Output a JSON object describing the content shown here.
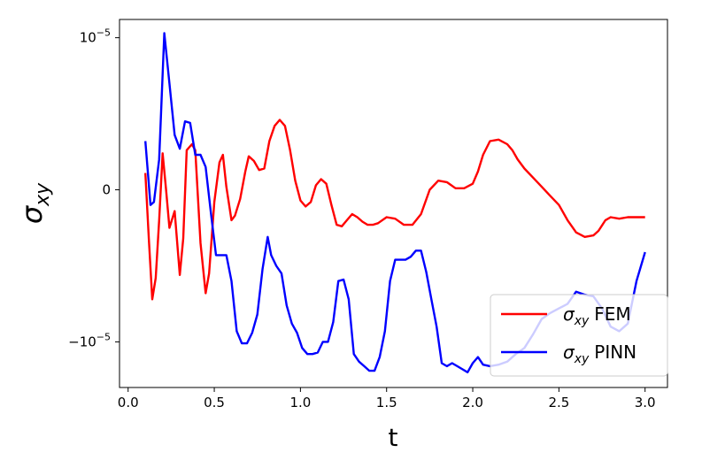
{
  "chart_data": {
    "type": "line",
    "xlabel": "t",
    "ylabel_base": "σ",
    "ylabel_sub": "xy",
    "xlim": [
      -0.05,
      3.13
    ],
    "ylim": [
      -1.3e-05,
      1.12e-05
    ],
    "x_ticks": [
      {
        "value": 0.0,
        "label": "0.0"
      },
      {
        "value": 0.5,
        "label": "0.5"
      },
      {
        "value": 1.0,
        "label": "1.0"
      },
      {
        "value": 1.5,
        "label": "1.5"
      },
      {
        "value": 2.0,
        "label": "2.0"
      },
      {
        "value": 2.5,
        "label": "2.5"
      },
      {
        "value": 3.0,
        "label": "3.0"
      }
    ],
    "y_ticks": [
      {
        "value": 1e-05,
        "base": "10",
        "exp": "−5",
        "sign": ""
      },
      {
        "value": 0,
        "base": "0",
        "exp": "",
        "sign": ""
      },
      {
        "value": -1e-05,
        "base": "10",
        "exp": "−5",
        "sign": "−"
      }
    ],
    "legend_position": "lower-right",
    "series": [
      {
        "name_base": "σ",
        "name_sub": "xy",
        "name_suffix": "FEM",
        "color": "#ff0000",
        "x": [
          0.1,
          0.12,
          0.14,
          0.16,
          0.18,
          0.2,
          0.22,
          0.24,
          0.27,
          0.3,
          0.32,
          0.34,
          0.37,
          0.39,
          0.42,
          0.45,
          0.47,
          0.5,
          0.53,
          0.55,
          0.57,
          0.6,
          0.62,
          0.65,
          0.68,
          0.7,
          0.73,
          0.76,
          0.79,
          0.82,
          0.85,
          0.88,
          0.91,
          0.94,
          0.97,
          1.0,
          1.03,
          1.06,
          1.09,
          1.12,
          1.15,
          1.18,
          1.21,
          1.24,
          1.27,
          1.3,
          1.33,
          1.36,
          1.39,
          1.42,
          1.45,
          1.5,
          1.55,
          1.6,
          1.65,
          1.7,
          1.75,
          1.8,
          1.85,
          1.9,
          1.95,
          2.0,
          2.03,
          2.06,
          2.1,
          2.15,
          2.2,
          2.23,
          2.26,
          2.3,
          2.35,
          2.4,
          2.45,
          2.5,
          2.55,
          2.6,
          2.65,
          2.7,
          2.73,
          2.77,
          2.8,
          2.85,
          2.9,
          2.95,
          3.0
        ],
        "y": [
          1.1e-06,
          -3.2e-06,
          -7.2e-06,
          -5.8e-06,
          -2e-06,
          2.4e-06,
          0.0,
          -2.5e-06,
          -1.4e-06,
          -5.6e-06,
          -3.2e-06,
          2.6e-06,
          3e-06,
          2.6e-06,
          -3.5e-06,
          -6.8e-06,
          -5.5e-06,
          -8e-07,
          1.8e-06,
          2.3e-06,
          2e-07,
          -2e-06,
          -1.7e-06,
          -6e-07,
          1.2e-06,
          2.2e-06,
          1.9e-06,
          1.3e-06,
          1.4e-06,
          3.2e-06,
          4.2e-06,
          4.6e-06,
          4.2e-06,
          2.6e-06,
          6e-07,
          -7e-07,
          -1.1e-06,
          -8e-07,
          3e-07,
          7e-07,
          4e-07,
          -1e-06,
          -2.3e-06,
          -2.4e-06,
          -2e-06,
          -1.6e-06,
          -1.8e-06,
          -2.1e-06,
          -2.3e-06,
          -2.3e-06,
          -2.2e-06,
          -1.8e-06,
          -1.9e-06,
          -2.3e-06,
          -2.3e-06,
          -1.6e-06,
          0.0,
          6e-07,
          5e-07,
          1e-07,
          1e-07,
          4e-07,
          1.2e-06,
          2.3e-06,
          3.2e-06,
          3.3e-06,
          3e-06,
          2.6e-06,
          2e-06,
          1.4e-06,
          8e-07,
          2e-07,
          -4e-07,
          -1e-06,
          -2e-06,
          -2.8e-06,
          -3.1e-06,
          -3e-06,
          -2.7e-06,
          -2e-06,
          -1.8e-06,
          -1.9e-06,
          -1.8e-06,
          -1.8e-06,
          -1.8e-06
        ]
      },
      {
        "name_base": "σ",
        "name_sub": "xy",
        "name_suffix": "PINN",
        "color": "#0000ff",
        "x": [
          0.1,
          0.13,
          0.15,
          0.18,
          0.21,
          0.24,
          0.27,
          0.3,
          0.33,
          0.36,
          0.39,
          0.42,
          0.45,
          0.48,
          0.51,
          0.54,
          0.57,
          0.6,
          0.63,
          0.66,
          0.69,
          0.72,
          0.75,
          0.78,
          0.81,
          0.83,
          0.86,
          0.89,
          0.92,
          0.95,
          0.98,
          1.01,
          1.04,
          1.07,
          1.1,
          1.13,
          1.16,
          1.19,
          1.22,
          1.25,
          1.28,
          1.31,
          1.34,
          1.37,
          1.4,
          1.43,
          1.46,
          1.49,
          1.52,
          1.55,
          1.58,
          1.61,
          1.64,
          1.67,
          1.7,
          1.73,
          1.76,
          1.79,
          1.82,
          1.85,
          1.88,
          1.91,
          1.94,
          1.97,
          2.0,
          2.03,
          2.06,
          2.1,
          2.15,
          2.2,
          2.25,
          2.3,
          2.35,
          2.4,
          2.45,
          2.5,
          2.55,
          2.6,
          2.65,
          2.7,
          2.75,
          2.8,
          2.85,
          2.9,
          2.95,
          3.0
        ],
        "y": [
          3.2e-06,
          -1e-06,
          -8e-07,
          2e-06,
          1.03e-05,
          7e-06,
          3.6e-06,
          2.7e-06,
          4.5e-06,
          4.4e-06,
          2.3e-06,
          2.3e-06,
          1.5e-06,
          -1.5e-06,
          -4.3e-06,
          -4.3e-06,
          -4.3e-06,
          -6e-06,
          -9.3e-06,
          -1.01e-05,
          -1.01e-05,
          -9.4e-06,
          -8.2e-06,
          -5.2e-06,
          -3.1e-06,
          -4.3e-06,
          -5e-06,
          -5.5e-06,
          -7.6e-06,
          -8.8e-06,
          -9.4e-06,
          -1.04e-05,
          -1.08e-05,
          -1.08e-05,
          -1.07e-05,
          -1e-05,
          -1e-05,
          -8.7e-06,
          -6e-06,
          -5.9e-06,
          -7.2e-06,
          -1.08e-05,
          -1.13e-05,
          -1.16e-05,
          -1.19e-05,
          -1.19e-05,
          -1.1e-05,
          -9.3e-06,
          -6e-06,
          -4.6e-06,
          -4.6e-06,
          -4.6e-06,
          -4.4e-06,
          -4e-06,
          -4e-06,
          -5.4e-06,
          -7.2e-06,
          -9e-06,
          -1.14e-05,
          -1.16e-05,
          -1.14e-05,
          -1.16e-05,
          -1.18e-05,
          -1.2e-05,
          -1.14e-05,
          -1.1e-05,
          -1.15e-05,
          -1.16e-05,
          -1.15e-05,
          -1.13e-05,
          -1.08e-05,
          -1.04e-05,
          -9.5e-06,
          -8.5e-06,
          -8.1e-06,
          -7.8e-06,
          -7.5e-06,
          -6.7e-06,
          -6.9e-06,
          -7e-06,
          -7.8e-06,
          -9e-06,
          -9.3e-06,
          -8.8e-06,
          -6e-06,
          -4.1e-06
        ]
      }
    ]
  }
}
